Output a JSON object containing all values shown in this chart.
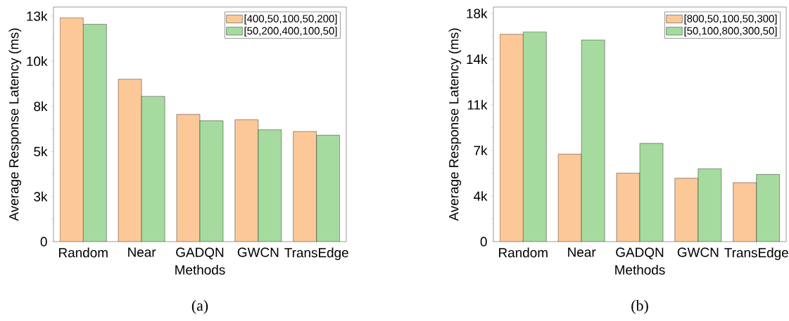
{
  "chart_data": [
    {
      "type": "bar",
      "xlabel": "Methods",
      "ylabel": "Average Response Latency (ms)",
      "categories": [
        "Random",
        "Near",
        "GADQN",
        "GWCN",
        "TransEdge"
      ],
      "series": [
        {
          "name": "[400,50,100,50,200]",
          "color": "#fdc898",
          "values": [
            12400,
            9000,
            7050,
            6750,
            6100
          ]
        },
        {
          "name": "[50,200,400,100,50]",
          "color": "#a6dba0",
          "values": [
            12050,
            8050,
            6700,
            6200,
            5900
          ]
        }
      ],
      "ylim": [
        0,
        13000
      ],
      "yticks": [
        0,
        {
          "value": 2500,
          "label": "3k"
        },
        {
          "value": 5000,
          "label": "5k"
        },
        {
          "value": 7500,
          "label": "8k"
        },
        {
          "value": 10000,
          "label": "10k"
        },
        {
          "value": 12500,
          "label": "13k"
        }
      ],
      "grid": false,
      "legend": "top right",
      "annotations": [
        "(a)"
      ]
    },
    {
      "type": "bar",
      "xlabel": "Methods",
      "ylabel": "Average Response Latency (ms)",
      "categories": [
        "Random",
        "Near",
        "GADQN",
        "GWCN",
        "TransEdge"
      ],
      "series": [
        {
          "name": "[800,50,100,50,300]",
          "color": "#fdc898",
          "values": [
            16350,
            6900,
            5400,
            5000,
            4650
          ]
        },
        {
          "name": "[50,100,800,300,50]",
          "color": "#a6dba0",
          "values": [
            16550,
            15900,
            7750,
            5750,
            5300
          ]
        }
      ],
      "ylim": [
        0,
        18500
      ],
      "yticks": [
        0,
        {
          "value": 3600,
          "label": "4k"
        },
        {
          "value": 7200,
          "label": "7k"
        },
        {
          "value": 10800,
          "label": "11k"
        },
        {
          "value": 14400,
          "label": "14k"
        },
        {
          "value": 18000,
          "label": "18k"
        }
      ],
      "grid": false,
      "legend": "top right",
      "annotations": [
        "(b)"
      ]
    }
  ]
}
